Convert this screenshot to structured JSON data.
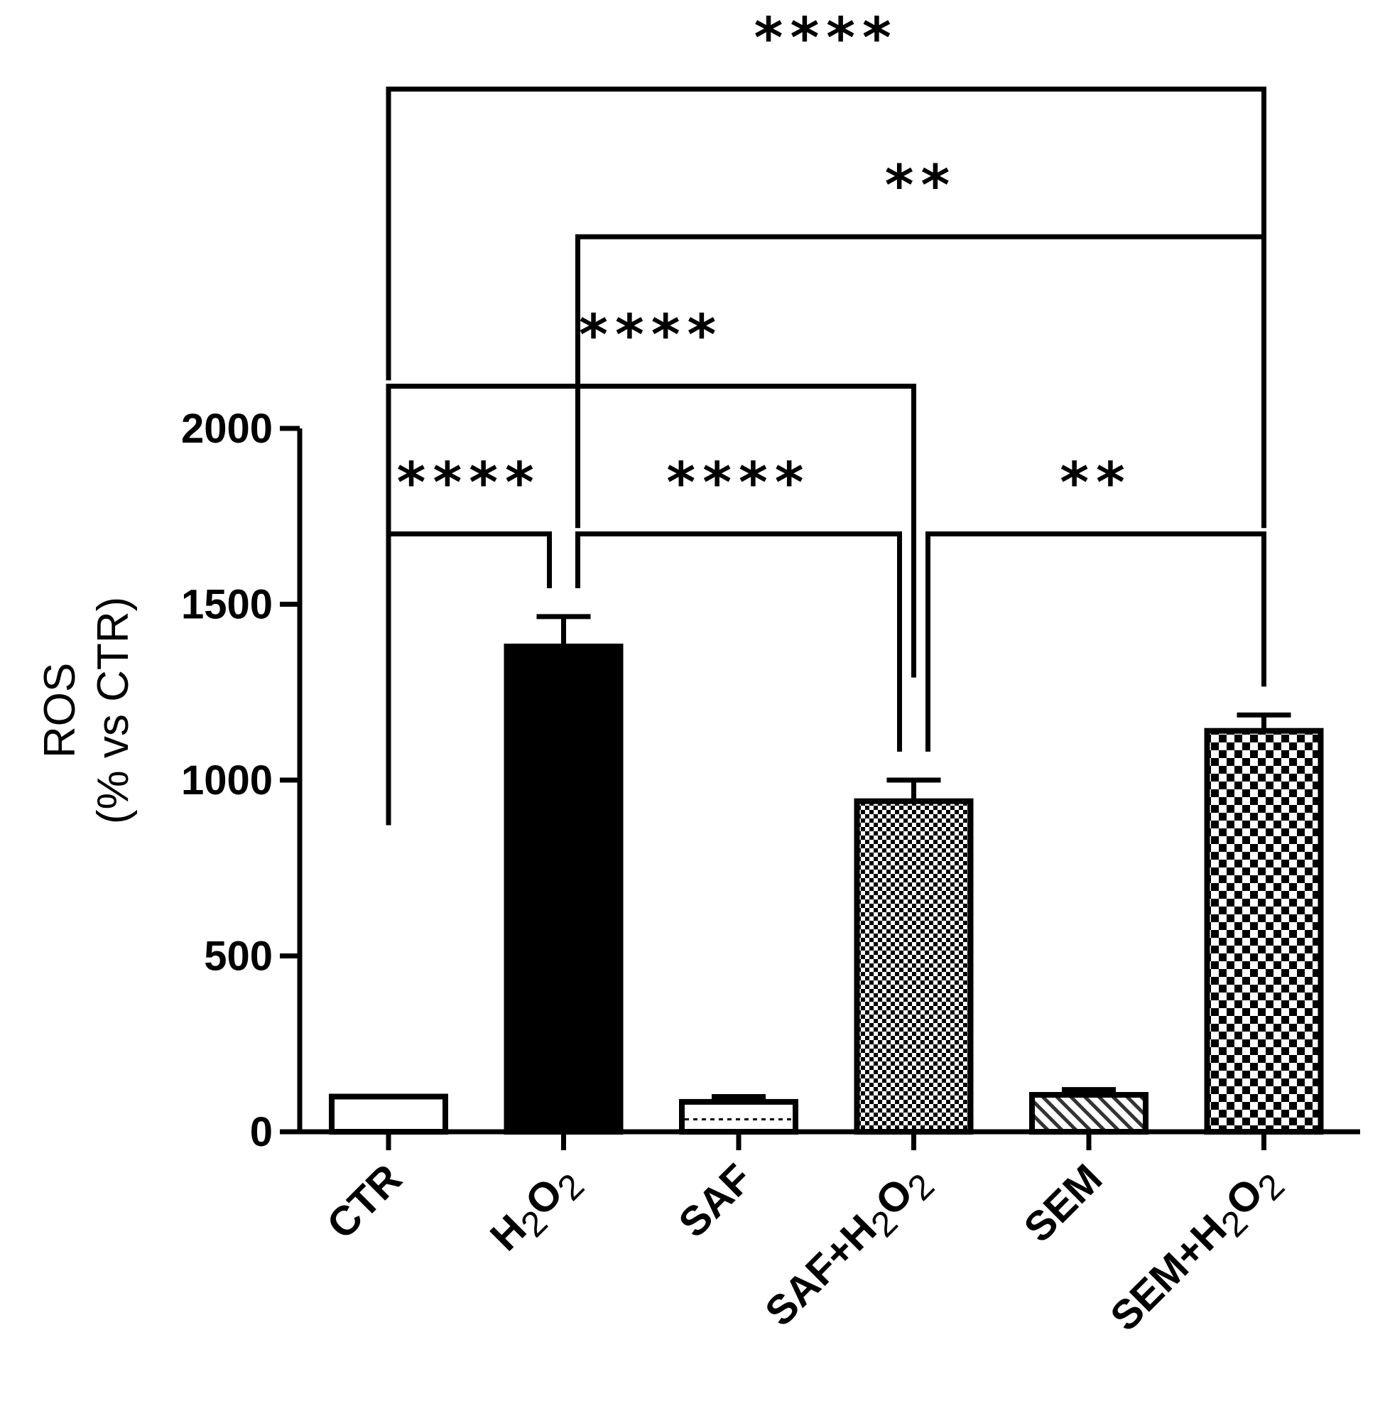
{
  "chart_data": {
    "type": "bar",
    "title": "",
    "ylabel_line1": "ROS",
    "ylabel_line2": "(% vs CTR)",
    "ylim": [
      0,
      2000
    ],
    "yticks": [
      0,
      500,
      1000,
      1500,
      2000
    ],
    "categories": [
      {
        "prefix": "CTR",
        "h2o2": false
      },
      {
        "prefix": "",
        "h2o2": true
      },
      {
        "prefix": "SAF",
        "h2o2": false
      },
      {
        "prefix": "SAF+",
        "h2o2": true
      },
      {
        "prefix": "SEM",
        "h2o2": false
      },
      {
        "prefix": "SEM+",
        "h2o2": true
      }
    ],
    "h2o2_text": {
      "h": "H",
      "two": "2",
      "o": "O"
    },
    "values": [
      100,
      1380,
      85,
      940,
      105,
      1140
    ],
    "errors": [
      0,
      85,
      15,
      60,
      15,
      45
    ],
    "fills": [
      "white",
      "black",
      "dots",
      "checker-fine",
      "hatch",
      "checker"
    ],
    "significance": [
      {
        "from": 0,
        "to": 1,
        "label": "****",
        "level": 1700
      },
      {
        "from": 1,
        "to": 3,
        "label": "****",
        "level": 1700
      },
      {
        "from": 3,
        "to": 5,
        "label": "**",
        "level": 1700
      },
      {
        "from": 0,
        "to": 3,
        "label": "****",
        "level": 2120
      },
      {
        "from": 1,
        "to": 5,
        "label": "**",
        "level": 2545
      },
      {
        "from": 0,
        "to": 5,
        "label": "****",
        "level": 2965
      }
    ]
  }
}
